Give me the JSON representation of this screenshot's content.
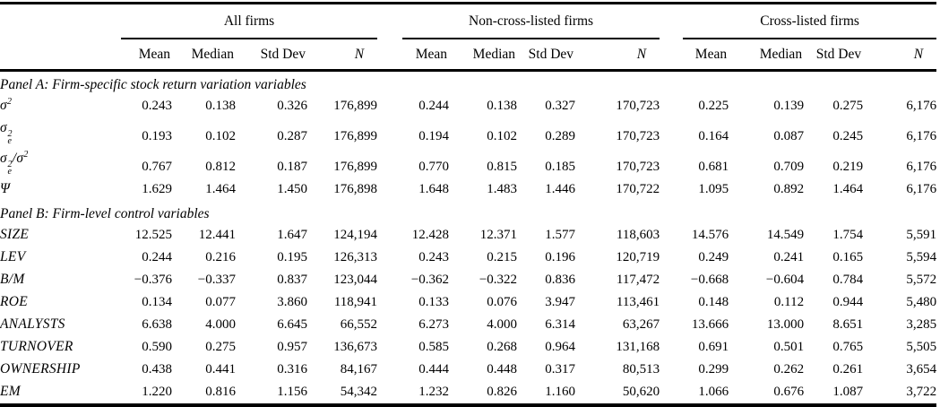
{
  "table": {
    "groups": [
      {
        "label": "All firms"
      },
      {
        "label": "Non-cross-listed firms"
      },
      {
        "label": "Cross-listed firms"
      }
    ],
    "col_headers": {
      "mean": "Mean",
      "median": "Median",
      "stddev": "Std Dev",
      "n": "N"
    },
    "panel_a_title": "Panel A: Firm-specific stock return variation variables",
    "panel_b_title": "Panel B: Firm-level control variables",
    "panel_a_rows": [
      {
        "label": {
          "base": "σ",
          "sup": "2"
        },
        "values": [
          "0.243",
          "0.138",
          "0.326",
          "176,899",
          "0.244",
          "0.138",
          "0.327",
          "170,723",
          "0.225",
          "0.139",
          "0.275",
          "6,176"
        ]
      },
      {
        "label": {
          "base": "σ",
          "sup": "2",
          "sub": "e"
        },
        "values": [
          "0.193",
          "0.102",
          "0.287",
          "176,899",
          "0.194",
          "0.102",
          "0.289",
          "170,723",
          "0.164",
          "0.087",
          "0.245",
          "6,176"
        ]
      },
      {
        "label": {
          "base": "σ",
          "sup": "2",
          "sub": "e",
          "divider": "/",
          "base2": "σ",
          "sup2": "2"
        },
        "values": [
          "0.767",
          "0.812",
          "0.187",
          "176,899",
          "0.770",
          "0.815",
          "0.185",
          "170,723",
          "0.681",
          "0.709",
          "0.219",
          "6,176"
        ]
      },
      {
        "label": {
          "base": "Ψ"
        },
        "values": [
          "1.629",
          "1.464",
          "1.450",
          "176,898",
          "1.648",
          "1.483",
          "1.446",
          "170,722",
          "1.095",
          "0.892",
          "1.464",
          "6,176"
        ]
      }
    ],
    "panel_b_rows": [
      {
        "label": "SIZE",
        "values": [
          "12.525",
          "12.441",
          "1.647",
          "124,194",
          "12.428",
          "12.371",
          "1.577",
          "118,603",
          "14.576",
          "14.549",
          "1.754",
          "5,591"
        ]
      },
      {
        "label": "LEV",
        "values": [
          "0.244",
          "0.216",
          "0.195",
          "126,313",
          "0.243",
          "0.215",
          "0.196",
          "120,719",
          "0.249",
          "0.241",
          "0.165",
          "5,594"
        ]
      },
      {
        "label": "B/M",
        "values": [
          "−0.376",
          "−0.337",
          "0.837",
          "123,044",
          "−0.362",
          "−0.322",
          "0.836",
          "117,472",
          "−0.668",
          "−0.604",
          "0.784",
          "5,572"
        ]
      },
      {
        "label": "ROE",
        "values": [
          "0.134",
          "0.077",
          "3.860",
          "118,941",
          "0.133",
          "0.076",
          "3.947",
          "113,461",
          "0.148",
          "0.112",
          "0.944",
          "5,480"
        ]
      },
      {
        "label": "ANALYSTS",
        "values": [
          "6.638",
          "4.000",
          "6.645",
          "66,552",
          "6.273",
          "4.000",
          "6.314",
          "63,267",
          "13.666",
          "13.000",
          "8.651",
          "3,285"
        ]
      },
      {
        "label": "TURNOVER",
        "values": [
          "0.590",
          "0.275",
          "0.957",
          "136,673",
          "0.585",
          "0.268",
          "0.964",
          "131,168",
          "0.691",
          "0.501",
          "0.765",
          "5,505"
        ]
      },
      {
        "label": "OWNERSHIP",
        "values": [
          "0.438",
          "0.441",
          "0.316",
          "84,167",
          "0.444",
          "0.448",
          "0.317",
          "80,513",
          "0.299",
          "0.262",
          "0.261",
          "3,654"
        ]
      },
      {
        "label": "EM",
        "values": [
          "1.220",
          "0.816",
          "1.156",
          "54,342",
          "1.232",
          "0.826",
          "1.160",
          "50,620",
          "1.066",
          "0.676",
          "1.087",
          "3,722"
        ]
      }
    ]
  }
}
